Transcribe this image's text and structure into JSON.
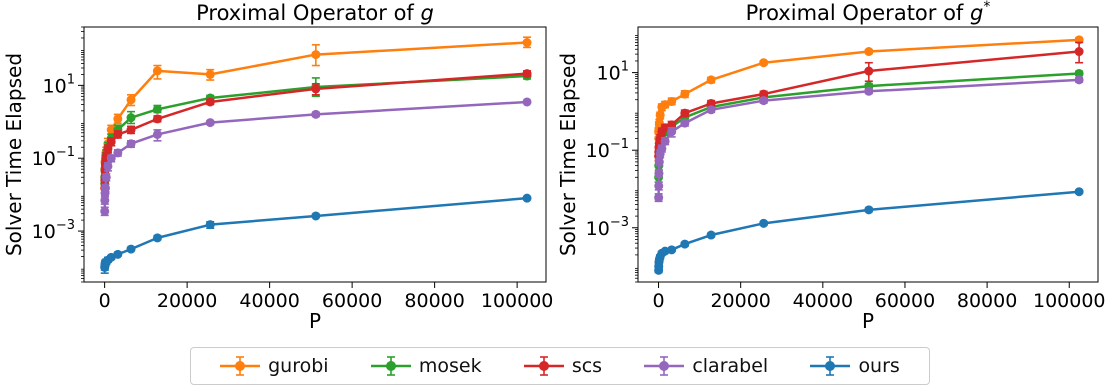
{
  "chart_data": [
    {
      "type": "line",
      "title": "Proximal Operator of ",
      "title_var": "g",
      "title_sup": "",
      "xlabel": "P",
      "ylabel": "Solver Time Elapsed",
      "yscale": "log",
      "xlim": [
        -5000,
        107000
      ],
      "ylim": [
        4e-05,
        400
      ],
      "xticks": [
        0,
        20000,
        40000,
        60000,
        80000,
        100000
      ],
      "xtick_labels": [
        "0",
        "20000",
        "40000",
        "60000",
        "80000",
        "100000"
      ],
      "yticks": [
        0.001,
        0.1,
        10
      ],
      "ytick_labels": [
        {
          "base": "10",
          "exp": "−3"
        },
        {
          "base": "10",
          "exp": "−1"
        },
        {
          "base": "10",
          "exp": "1"
        }
      ],
      "x": [
        25,
        50,
        100,
        200,
        400,
        800,
        1600,
        3200,
        6400,
        12800,
        25600,
        51200,
        102400
      ],
      "series": [
        {
          "name": "gurobi",
          "color": "#ff7f0e",
          "values": [
            0.03,
            0.05,
            0.08,
            0.1,
            0.15,
            0.25,
            0.6,
            1.2,
            4,
            25,
            20,
            70,
            150
          ],
          "err_low": [
            0.02,
            0.035,
            0.05,
            0.07,
            0.1,
            0.18,
            0.45,
            0.9,
            2.8,
            15,
            14,
            35,
            110
          ],
          "err_high": [
            0.045,
            0.07,
            0.12,
            0.14,
            0.2,
            0.35,
            0.8,
            1.6,
            5.5,
            35,
            27,
            130,
            210
          ]
        },
        {
          "name": "mosek",
          "color": "#2ca02c",
          "values": [
            0.02,
            0.03,
            0.05,
            0.08,
            0.13,
            0.2,
            0.35,
            0.6,
            1.3,
            2.2,
            4.5,
            9,
            18
          ],
          "err_low": [
            0.015,
            0.022,
            0.038,
            0.06,
            0.1,
            0.15,
            0.26,
            0.45,
            0.9,
            1.8,
            3.8,
            5,
            15
          ],
          "err_high": [
            0.027,
            0.04,
            0.065,
            0.1,
            0.17,
            0.27,
            0.46,
            0.8,
            1.9,
            2.8,
            5.3,
            16,
            22
          ]
        },
        {
          "name": "scs",
          "color": "#d62728",
          "values": [
            0.015,
            0.025,
            0.045,
            0.07,
            0.11,
            0.18,
            0.28,
            0.45,
            0.6,
            1.2,
            3.5,
            8,
            21
          ],
          "err_low": [
            0.011,
            0.019,
            0.034,
            0.054,
            0.085,
            0.14,
            0.22,
            0.36,
            0.48,
            1.0,
            3.0,
            5.5,
            18
          ],
          "err_high": [
            0.02,
            0.033,
            0.06,
            0.09,
            0.14,
            0.23,
            0.36,
            0.56,
            0.75,
            1.45,
            4.1,
            11,
            25
          ]
        },
        {
          "name": "clarabel",
          "color": "#9467bd",
          "values": [
            0.0035,
            0.007,
            0.011,
            0.015,
            0.03,
            0.06,
            0.1,
            0.14,
            0.25,
            0.45,
            0.95,
            1.6,
            3.5
          ],
          "err_low": [
            0.0027,
            0.0055,
            0.0088,
            0.012,
            0.024,
            0.045,
            0.08,
            0.115,
            0.2,
            0.3,
            0.85,
            1.4,
            3.2
          ],
          "err_high": [
            0.0045,
            0.009,
            0.014,
            0.019,
            0.037,
            0.075,
            0.12,
            0.17,
            0.3,
            0.6,
            1.05,
            1.8,
            3.8
          ]
        },
        {
          "name": "ours",
          "color": "#1f77b4",
          "values": [
            0.0001,
            0.00011,
            0.00012,
            0.00013,
            0.00014,
            0.00016,
            0.00019,
            0.00023,
            0.00032,
            0.00065,
            0.0015,
            0.0026,
            0.008
          ],
          "err_low": [
            7e-05,
            8.5e-05,
            0.0001,
            0.00011,
            0.00012,
            0.00014,
            0.00017,
            0.00021,
            0.00029,
            0.00058,
            0.0012,
            0.0024,
            0.0075
          ],
          "err_high": [
            0.00013,
            0.00014,
            0.00015,
            0.00016,
            0.00017,
            0.00019,
            0.00021,
            0.00026,
            0.00036,
            0.00075,
            0.0018,
            0.0029,
            0.0086
          ]
        }
      ]
    },
    {
      "type": "line",
      "title": "Proximal Operator of ",
      "title_var": "g",
      "title_sup": "*",
      "xlabel": "P",
      "ylabel": "Solver Time Elapsed",
      "yscale": "log",
      "xlim": [
        -5000,
        107000
      ],
      "ylim": [
        4e-05,
        150
      ],
      "xticks": [
        0,
        20000,
        40000,
        60000,
        80000,
        100000
      ],
      "xtick_labels": [
        "0",
        "20000",
        "40000",
        "60000",
        "80000",
        "100000"
      ],
      "yticks": [
        0.001,
        0.1,
        10
      ],
      "ytick_labels": [
        {
          "base": "10",
          "exp": "−3"
        },
        {
          "base": "10",
          "exp": "−1"
        },
        {
          "base": "10",
          "exp": "1"
        }
      ],
      "x": [
        25,
        50,
        100,
        200,
        400,
        800,
        1600,
        3200,
        6400,
        12800,
        25600,
        51200,
        102400
      ],
      "series": [
        {
          "name": "gurobi",
          "color": "#ff7f0e",
          "values": [
            0.3,
            0.2,
            0.35,
            0.5,
            0.8,
            1.3,
            1.5,
            1.8,
            2.8,
            6.5,
            18,
            35,
            70
          ],
          "err_low": [
            0.22,
            0.15,
            0.27,
            0.4,
            0.65,
            1.05,
            1.25,
            1.5,
            2.3,
            5.5,
            16,
            31,
            62
          ],
          "err_high": [
            0.38,
            0.26,
            0.44,
            0.62,
            0.95,
            1.55,
            1.8,
            2.2,
            3.4,
            7.5,
            20,
            39,
            78
          ]
        },
        {
          "name": "mosek",
          "color": "#2ca02c",
          "values": [
            0.02,
            0.04,
            0.07,
            0.1,
            0.15,
            0.2,
            0.3,
            0.4,
            0.7,
            1.3,
            2.3,
            4.5,
            9.5
          ],
          "err_low": [
            0.015,
            0.03,
            0.055,
            0.08,
            0.12,
            0.16,
            0.24,
            0.33,
            0.58,
            1.1,
            2.0,
            3.8,
            8.5
          ],
          "err_high": [
            0.026,
            0.05,
            0.09,
            0.12,
            0.18,
            0.25,
            0.37,
            0.48,
            0.85,
            1.5,
            2.6,
            5.2,
            10.8
          ]
        },
        {
          "name": "scs",
          "color": "#d62728",
          "values": [
            0.07,
            0.09,
            0.12,
            0.15,
            0.2,
            0.3,
            0.38,
            0.45,
            0.9,
            1.6,
            2.8,
            11,
            35
          ],
          "err_low": [
            0.055,
            0.07,
            0.095,
            0.12,
            0.16,
            0.24,
            0.31,
            0.38,
            0.75,
            1.35,
            2.4,
            6,
            18
          ],
          "err_high": [
            0.09,
            0.11,
            0.15,
            0.19,
            0.25,
            0.37,
            0.46,
            0.55,
            1.08,
            1.9,
            3.3,
            18,
            60
          ]
        },
        {
          "name": "clarabel",
          "color": "#9467bd",
          "values": [
            0.006,
            0.012,
            0.025,
            0.05,
            0.08,
            0.11,
            0.17,
            0.3,
            0.5,
            1.1,
            1.9,
            3.3,
            6.5
          ],
          "err_low": [
            0.0048,
            0.0095,
            0.02,
            0.04,
            0.065,
            0.09,
            0.14,
            0.22,
            0.42,
            0.95,
            1.65,
            2.9,
            5.7
          ],
          "err_high": [
            0.0075,
            0.015,
            0.031,
            0.062,
            0.1,
            0.135,
            0.21,
            0.38,
            0.6,
            1.27,
            2.2,
            3.7,
            7.4
          ]
        },
        {
          "name": "ours",
          "color": "#1f77b4",
          "values": [
            8e-05,
            0.0001,
            0.00013,
            0.00015,
            0.00018,
            0.00022,
            0.00025,
            0.00027,
            0.00038,
            0.00065,
            0.0013,
            0.0029,
            0.0085
          ],
          "err_low": [
            7e-05,
            8.5e-05,
            0.00011,
            0.00013,
            0.00016,
            0.0002,
            0.00023,
            0.00025,
            0.00034,
            0.00058,
            0.00118,
            0.0026,
            0.0078
          ],
          "err_high": [
            9e-05,
            0.000115,
            0.00015,
            0.00017,
            0.0002,
            0.00024,
            0.00027,
            0.00029,
            0.00042,
            0.00072,
            0.00142,
            0.0032,
            0.0093
          ]
        }
      ]
    }
  ],
  "legend": {
    "placement": "bottom-center",
    "items": [
      {
        "label": "gurobi",
        "color": "#ff7f0e"
      },
      {
        "label": "mosek",
        "color": "#2ca02c"
      },
      {
        "label": "scs",
        "color": "#d62728"
      },
      {
        "label": "clarabel",
        "color": "#9467bd"
      },
      {
        "label": "ours",
        "color": "#1f77b4"
      }
    ]
  }
}
